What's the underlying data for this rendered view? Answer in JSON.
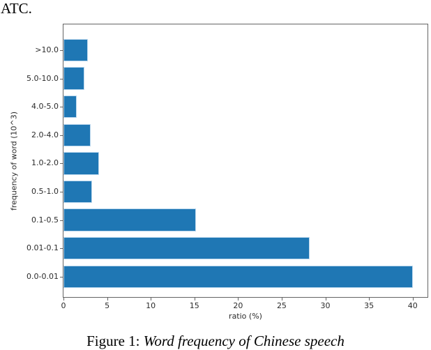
{
  "page": {
    "top_text": "ATC."
  },
  "caption": {
    "prefix": "Figure 1:",
    "title": "Word frequency of Chinese speech"
  },
  "chart_data": {
    "type": "bar",
    "orientation": "horizontal",
    "title": "",
    "xlabel": "ratio (%)",
    "ylabel": "frequency of word (10^3)",
    "categories": [
      ">10.0",
      "5.0-10.0",
      "4.0-5.0",
      "2.0-4.0",
      "1.0-2.0",
      "0.5-1.0",
      "0.1-0.5",
      "0.01-0.1",
      "0.0-0.01"
    ],
    "values": [
      2.8,
      2.4,
      1.5,
      3.1,
      4.1,
      3.3,
      15.2,
      28.2,
      40.0
    ],
    "xticks": [
      0,
      5,
      10,
      15,
      20,
      25,
      30,
      35,
      40
    ],
    "xlim": [
      0,
      41.7
    ],
    "grid": false,
    "legend": null,
    "bar_color": "#1f77b4",
    "bar_edge_color": "#bcd8ee",
    "axis_color": "#636363"
  }
}
